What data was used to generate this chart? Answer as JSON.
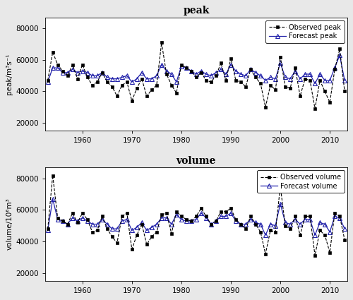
{
  "years": [
    1953,
    1954,
    1955,
    1956,
    1957,
    1958,
    1959,
    1960,
    1961,
    1962,
    1963,
    1964,
    1965,
    1966,
    1967,
    1968,
    1969,
    1970,
    1971,
    1972,
    1973,
    1974,
    1975,
    1976,
    1977,
    1978,
    1979,
    1980,
    1981,
    1982,
    1983,
    1984,
    1985,
    1986,
    1987,
    1988,
    1989,
    1990,
    1991,
    1992,
    1993,
    1994,
    1995,
    1996,
    1997,
    1998,
    1999,
    2000,
    2001,
    2002,
    2003,
    2004,
    2005,
    2006,
    2007,
    2008,
    2009,
    2010,
    2011,
    2012,
    2013
  ],
  "peak_observed": [
    47000,
    65000,
    57000,
    53000,
    50000,
    57000,
    48000,
    57000,
    49000,
    44000,
    46000,
    52000,
    46000,
    43000,
    37000,
    44000,
    46000,
    34000,
    42000,
    48000,
    37000,
    41000,
    44000,
    71000,
    51000,
    44000,
    39000,
    57000,
    55000,
    53000,
    49000,
    52000,
    47000,
    46000,
    50000,
    58000,
    47000,
    61000,
    47000,
    46000,
    43000,
    54000,
    49000,
    45000,
    30000,
    44000,
    41000,
    62000,
    43000,
    42000,
    55000,
    37000,
    48000,
    47000,
    29000,
    47000,
    40000,
    33000,
    54000,
    67000,
    40000
  ],
  "peak_forecast": [
    46000,
    55000,
    55000,
    52000,
    52000,
    54000,
    52000,
    53000,
    52000,
    50000,
    50000,
    52000,
    49000,
    48000,
    48000,
    49000,
    50000,
    46000,
    48000,
    52000,
    48000,
    48000,
    50000,
    57000,
    53000,
    51000,
    46000,
    56000,
    55000,
    53000,
    51000,
    53000,
    51000,
    50000,
    52000,
    54000,
    51000,
    57000,
    53000,
    51000,
    50000,
    54000,
    52000,
    50000,
    47000,
    49000,
    48000,
    58000,
    49000,
    48000,
    53000,
    48000,
    51000,
    51000,
    45000,
    51000,
    47000,
    47000,
    55000,
    63000,
    47000
  ],
  "volume_observed": [
    48000,
    82000,
    55000,
    53000,
    51000,
    58000,
    52000,
    58000,
    54000,
    46000,
    47000,
    56000,
    48000,
    43000,
    39000,
    56000,
    58000,
    35000,
    44000,
    51000,
    38000,
    43000,
    46000,
    57000,
    58000,
    45000,
    59000,
    56000,
    54000,
    53000,
    56000,
    61000,
    56000,
    51000,
    53000,
    59000,
    59000,
    61000,
    54000,
    51000,
    48000,
    56000,
    51000,
    46000,
    32000,
    47000,
    46000,
    75000,
    50000,
    48000,
    56000,
    44000,
    56000,
    56000,
    31000,
    47000,
    44000,
    33000,
    58000,
    56000,
    41000
  ],
  "volume_forecast": [
    47000,
    67000,
    54000,
    53000,
    51000,
    55000,
    53000,
    55000,
    53000,
    51000,
    51000,
    54000,
    51000,
    48000,
    48000,
    53000,
    54000,
    47000,
    49000,
    52000,
    47000,
    49000,
    51000,
    55000,
    55000,
    51000,
    57000,
    54000,
    53000,
    53000,
    54000,
    58000,
    55000,
    51000,
    53000,
    56000,
    56000,
    58000,
    53000,
    51000,
    51000,
    54000,
    52000,
    51000,
    44000,
    51000,
    50000,
    64000,
    52000,
    51000,
    54000,
    51000,
    54000,
    54000,
    44000,
    52000,
    51000,
    46000,
    56000,
    55000,
    48000
  ],
  "peak_title": "peak",
  "volume_title": "volume",
  "peak_ylabel": "peak/m³s⁻¹",
  "volume_ylabel": "volume/10⁶m³",
  "peak_obs_label": "Observed peak",
  "peak_fc_label": "Forecast peak",
  "vol_obs_label": "Observed volume",
  "vol_fc_label": "Forecast volume",
  "obs_color": "#000000",
  "fc_color": "#2222aa",
  "ylim": [
    15000,
    87000
  ],
  "yticks": [
    20000,
    40000,
    60000,
    80000
  ],
  "xticks": [
    1960,
    1970,
    1980,
    1990,
    2000,
    2010
  ],
  "bg_color": "#ffffff",
  "fig_bg_color": "#e8e8e8"
}
